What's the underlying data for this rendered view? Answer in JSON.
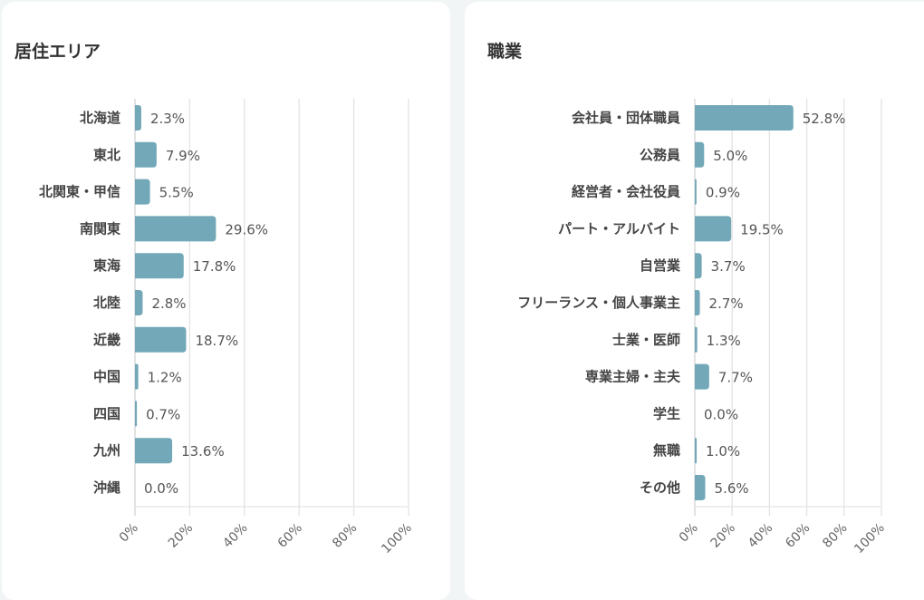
{
  "chart_data": [
    {
      "type": "bar",
      "orientation": "horizontal",
      "title": "居住エリア",
      "categories": [
        "北海道",
        "東北",
        "北関東・甲信",
        "南関東",
        "東海",
        "北陸",
        "近畿",
        "中国",
        "四国",
        "九州",
        "沖縄"
      ],
      "values": [
        2.3,
        7.9,
        5.5,
        29.6,
        17.8,
        2.8,
        18.7,
        1.2,
        0.7,
        13.6,
        0.0
      ],
      "value_labels": [
        "2.3%",
        "7.9%",
        "5.5%",
        "29.6%",
        "17.8%",
        "2.8%",
        "18.7%",
        "1.2%",
        "0.7%",
        "13.6%",
        "0.0%"
      ],
      "xlim": [
        0,
        100
      ],
      "xticks": [
        "0%",
        "20%",
        "40%",
        "60%",
        "80%",
        "100%"
      ],
      "grid": true,
      "color": "#72a8b8"
    },
    {
      "type": "bar",
      "orientation": "horizontal",
      "title": "職業",
      "categories": [
        "会社員・団体職員",
        "公務員",
        "経営者・会社役員",
        "パート・アルバイト",
        "自営業",
        "フリーランス・個人事業主",
        "士業・医師",
        "専業主婦・主夫",
        "学生",
        "無職",
        "その他"
      ],
      "values": [
        52.8,
        5.0,
        0.9,
        19.5,
        3.7,
        2.7,
        1.3,
        7.7,
        0.0,
        1.0,
        5.6
      ],
      "value_labels": [
        "52.8%",
        "5.0%",
        "0.9%",
        "19.5%",
        "3.7%",
        "2.7%",
        "1.3%",
        "7.7%",
        "0.0%",
        "1.0%",
        "5.6%"
      ],
      "xlim": [
        0,
        100
      ],
      "xticks": [
        "0%",
        "20%",
        "40%",
        "60%",
        "80%",
        "100%"
      ],
      "grid": true,
      "color": "#72a8b8"
    }
  ]
}
